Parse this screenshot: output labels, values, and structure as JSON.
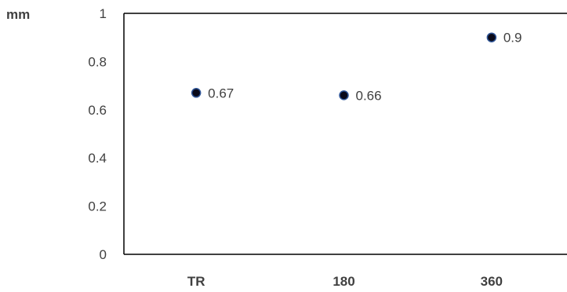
{
  "chart_data": {
    "type": "scatter",
    "title": "",
    "xlabel": "",
    "ylabel": "mm",
    "categories": [
      "TR",
      "180",
      "360"
    ],
    "series": [
      {
        "values": [
          0.67,
          0.66,
          0.9
        ]
      }
    ],
    "data_labels": [
      "0.67",
      "0.66",
      "0.9"
    ],
    "y_ticks": [
      "0",
      "0.2",
      "0.4",
      "0.6",
      "0.8",
      "1"
    ],
    "ylim": [
      0,
      1
    ],
    "grid": false,
    "legend": "none",
    "colors": {
      "marker_fill": "#0a0a1a",
      "marker_stroke": "#2f5597",
      "axis": "#000000",
      "text": "#404040"
    }
  }
}
